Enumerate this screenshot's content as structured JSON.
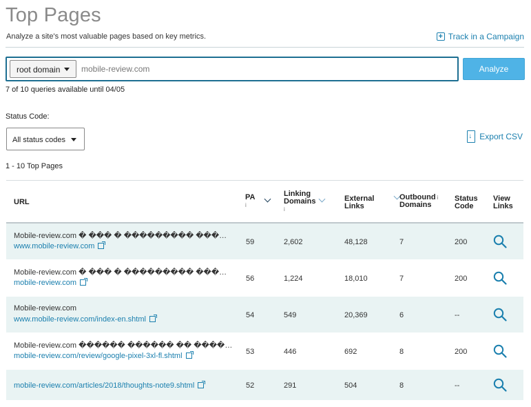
{
  "header": {
    "title": "Top Pages",
    "subtitle": "Analyze a site's most valuable pages based on key metrics.",
    "track_label": "Track in a Campaign"
  },
  "search": {
    "scope_selected": "root domain",
    "domain_value": "mobile-review.com",
    "analyze_label": "Analyze",
    "queries_text": "7 of 10 queries available until 04/05"
  },
  "filters": {
    "status_label": "Status Code:",
    "status_selected": "All status codes",
    "export_label": "Export CSV"
  },
  "results": {
    "range_text": "1 - 10  Top Pages"
  },
  "table": {
    "headers": {
      "url": "URL",
      "pa": "PA",
      "linking_domains_1": "Linking",
      "linking_domains_2": "Domains",
      "external_links_1": "External",
      "external_links_2": "Links",
      "outbound_domains_1": "Outbound",
      "outbound_domains_2": "Domains",
      "status_code_1": "Status",
      "status_code_2": "Code",
      "view_links_1": "View",
      "view_links_2": "Links"
    },
    "rows": [
      {
        "title": "Mobile-review.com � ��� � ��������� ��������",
        "url": "www.mobile-review.com",
        "pa": "59",
        "linking_domains": "2,602",
        "external_links": "48,128",
        "outbound_domains": "7",
        "status_code": "200"
      },
      {
        "title": "Mobile-review.com � ��� � ��������� ��������",
        "url": "mobile-review.com",
        "pa": "56",
        "linking_domains": "1,224",
        "external_links": "18,010",
        "outbound_domains": "7",
        "status_code": "200"
      },
      {
        "title": "Mobile-review.com",
        "url": "www.mobile-review.com/index-en.shtml",
        "pa": "54",
        "linking_domains": "549",
        "external_links": "20,369",
        "outbound_domains": "6",
        "status_code": "--"
      },
      {
        "title": "Mobile-review.com ������ ������ �� ��������",
        "url": "mobile-review.com/review/google-pixel-3xl-fl.shtml",
        "pa": "53",
        "linking_domains": "446",
        "external_links": "692",
        "outbound_domains": "8",
        "status_code": "200"
      },
      {
        "title": "",
        "url": "mobile-review.com/articles/2018/thoughts-note9.shtml",
        "pa": "52",
        "linking_domains": "291",
        "external_links": "504",
        "outbound_domains": "8",
        "status_code": "--"
      }
    ]
  },
  "colors": {
    "accent": "#1a7fae",
    "analyze_button": "#4fb3e6",
    "row_alt": "#e9f3f3",
    "search_border": "#1c6e91"
  },
  "icons": {
    "track": "plus-box-icon",
    "export": "file-download-icon",
    "view_links": "magnifier-icon",
    "external": "external-link-icon",
    "dropdown": "caret-down-icon"
  }
}
